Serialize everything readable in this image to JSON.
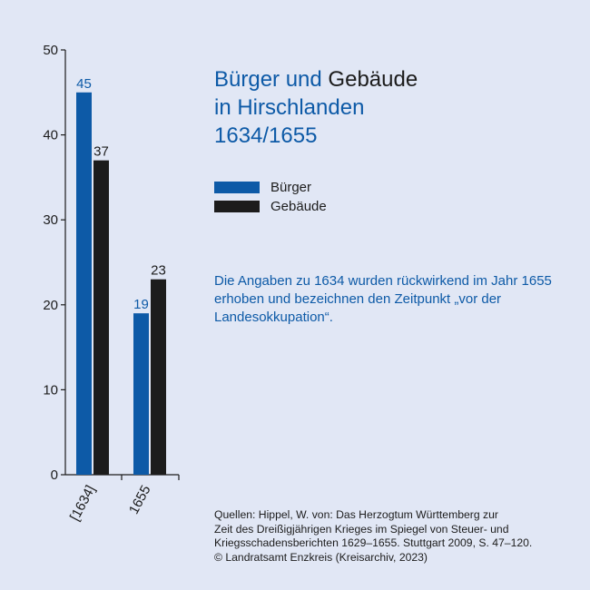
{
  "title": {
    "part1": "Bürger und ",
    "part2": "Gebäude",
    "line2": "in Hirschlanden",
    "line3": "1634/1655"
  },
  "legend": [
    {
      "label": "Bürger",
      "color": "#0d5aa7"
    },
    {
      "label": "Gebäude",
      "color": "#1c1c1c"
    }
  ],
  "note": "Die Angaben zu 1634 wurden rückwirkend im Jahr 1655 erhoben und bezeichnen den Zeitpunkt „vor der Landesokkupation“.",
  "sources": [
    "Quellen: Hippel, W. von: Das Herzogtum Württemberg zur",
    "Zeit des Dreißigjährigen Krieges im Spiegel von Steuer- und",
    "Kriegsschadensberichten 1629–1655. Stuttgart 2009, S. 47–120.",
    "© Landratsamt Enzkreis (Kreisarchiv, 2023)"
  ],
  "chart_data": {
    "type": "bar",
    "categories": [
      "[1634]",
      "1655"
    ],
    "series": [
      {
        "name": "Bürger",
        "values": [
          45,
          19
        ],
        "color": "#0d5aa7"
      },
      {
        "name": "Gebäude",
        "values": [
          37,
          23
        ],
        "color": "#1c1c1c"
      }
    ],
    "ylim": [
      0,
      50
    ],
    "yticks": [
      0,
      10,
      20,
      30,
      40,
      50
    ],
    "grid": false,
    "legend_position": "right"
  }
}
